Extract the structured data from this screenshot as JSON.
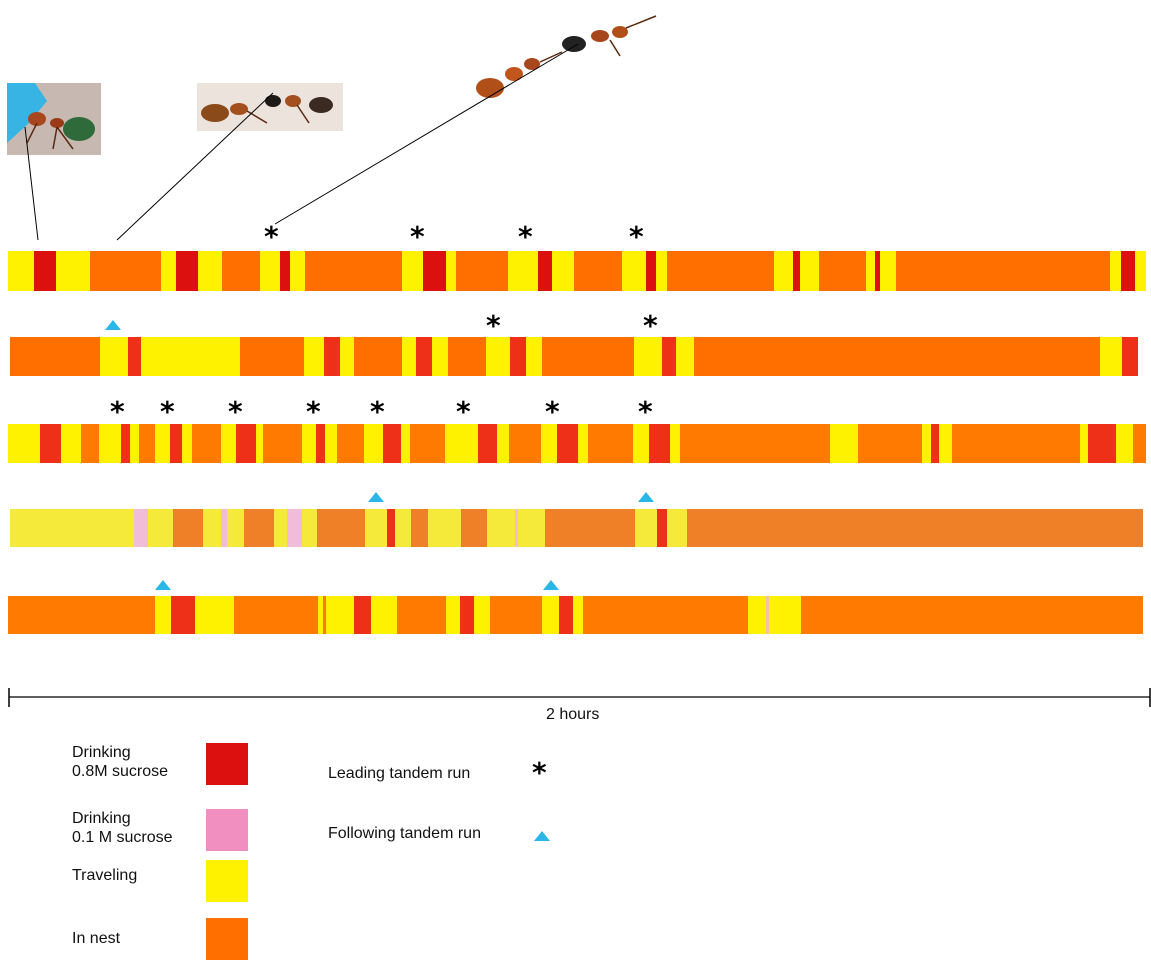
{
  "colors": {
    "drinking_high": "#dd1010",
    "drinking_low": "#f08fc0",
    "traveling": "#fff200",
    "in_nest": "#ff6f00",
    "in_nest_alt": "#f08028",
    "red_alt": "#ef3018",
    "lead_marker": "#000000",
    "follow_marker": "#2ab6e6"
  },
  "photos": [
    {
      "name": "ant-photo-1",
      "icon": "ant-drinking-photo"
    },
    {
      "name": "ant-photo-2",
      "icon": "ant-tandem-photo"
    },
    {
      "name": "ant-photo-3",
      "icon": "ant-tandem-photo"
    }
  ],
  "scale": {
    "label": "2 hours"
  },
  "legend": {
    "states": [
      {
        "label": "Drinking\n0.8M sucrose",
        "color_key": "drinking_high"
      },
      {
        "label": "Drinking\n0.1 M sucrose",
        "color_key": "drinking_low"
      },
      {
        "label": "Traveling",
        "color_key": "traveling"
      },
      {
        "label": "In nest",
        "color_key": "in_nest"
      }
    ],
    "markers": [
      {
        "label": "Leading tandem run",
        "symbol": "*",
        "icon": "asterisk-icon"
      },
      {
        "label": "Following tandem run",
        "symbol": "▲",
        "icon": "triangle-icon"
      }
    ]
  }
}
